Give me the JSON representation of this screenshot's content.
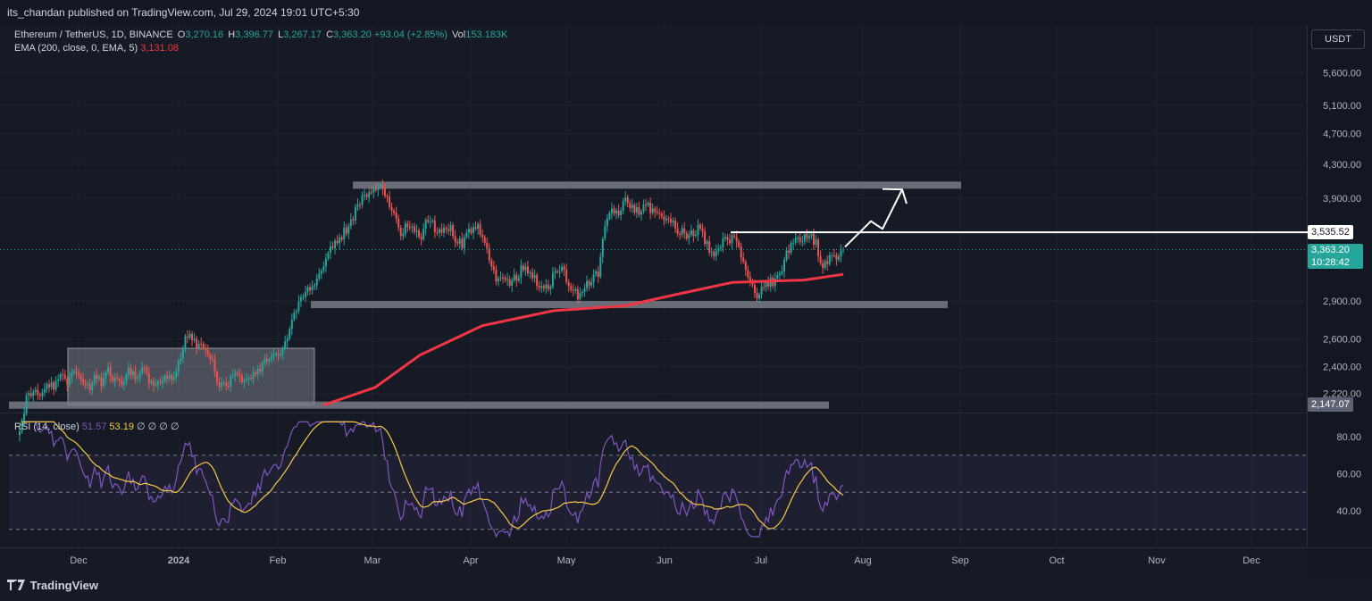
{
  "header": {
    "published_by": "its_chandan published on TradingView.com, Jul 29, 2024 19:01 UTC+5:30"
  },
  "legend": {
    "symbol": "Ethereum / TetherUS, 1D, BINANCE",
    "open_label": "O",
    "open": "3,270.16",
    "high_label": "H",
    "high": "3,396.77",
    "low_label": "L",
    "low": "3,267.17",
    "close_label": "C",
    "close": "3,363.20",
    "change": "+93.04 (+2.85%)",
    "vol_label": "Vol",
    "vol": "153.183K",
    "ema_label": "EMA (200, close, 0, EMA, 5)",
    "ema_value": "3,131.08"
  },
  "rsi_legend": {
    "label": "RSI (14, close)",
    "rsi": "51.57",
    "rsi_ma": "53.19",
    "extras": "∅ ∅ ∅ ∅"
  },
  "currency_button": "USDT",
  "price_tags": {
    "resistance": "3,535.52",
    "last_price": "3,363.20",
    "countdown": "10:28:42",
    "support": "2,147.07"
  },
  "footer": {
    "brand": "TradingView"
  },
  "colors": {
    "up": "#26a69a",
    "down": "#ef5350",
    "ema": "#f23645",
    "rsi": "#7e57c2",
    "rsi_ma": "#f7c948",
    "zone": "#787b86"
  },
  "chart_data": [
    {
      "type": "candlestick",
      "title": "Ethereum / TetherUS, 1D, BINANCE",
      "y_axis_ticks": [
        5600,
        5100,
        4700,
        4300,
        3900,
        3535.52,
        3363.2,
        2900,
        2600,
        2400,
        2220,
        2147.07
      ],
      "y_axis_labels": [
        "5,600.00",
        "5,100.00",
        "4,700.00",
        "4,300.00",
        "3,900.00",
        "2,900.00",
        "2,600.00",
        "2,400.00",
        "2,220.00"
      ],
      "x_axis_labels": [
        "Dec",
        "2024",
        "Feb",
        "Mar",
        "Apr",
        "May",
        "Jun",
        "Jul",
        "Aug",
        "Sep",
        "Oct",
        "Nov",
        "Dec"
      ],
      "close_path": [
        2020,
        2180,
        2260,
        2200,
        2290,
        2250,
        2340,
        2300,
        2380,
        2310,
        2250,
        2320,
        2290,
        2360,
        2300,
        2280,
        2360,
        2320,
        2380,
        2300,
        2260,
        2300,
        2330,
        2370,
        2550,
        2650,
        2530,
        2570,
        2480,
        2300,
        2260,
        2320,
        2360,
        2310,
        2340,
        2380,
        2420,
        2440,
        2480,
        2560,
        2740,
        2860,
        2980,
        3050,
        3120,
        3250,
        3400,
        3480,
        3560,
        3700,
        3850,
        3960,
        3990,
        4050,
        3930,
        3700,
        3500,
        3620,
        3560,
        3500,
        3680,
        3580,
        3500,
        3600,
        3480,
        3420,
        3560,
        3600,
        3500,
        3280,
        3080,
        3100,
        3060,
        3120,
        3200,
        3140,
        3060,
        2990,
        3050,
        3200,
        3150,
        3000,
        2950,
        3030,
        3100,
        3120,
        3600,
        3800,
        3720,
        3860,
        3790,
        3760,
        3820,
        3760,
        3700,
        3650,
        3610,
        3550,
        3520,
        3500,
        3600,
        3400,
        3340,
        3420,
        3460,
        3450,
        3300,
        3100,
        2950,
        2980,
        3050,
        3080,
        3200,
        3380,
        3480,
        3450,
        3500,
        3420,
        3200,
        3260,
        3290,
        3363.2
      ],
      "ema200": {
        "name": "EMA (200, close, 0, EMA, 5)",
        "last": 3131.08
      },
      "annotations": [
        {
          "kind": "zone",
          "price": 4050
        },
        {
          "kind": "zone",
          "price": 2870
        },
        {
          "kind": "zone",
          "price": 2147.07
        },
        {
          "kind": "box",
          "price_top": 2530,
          "price_bottom": 2147.07
        },
        {
          "kind": "hline",
          "price": 3535.52
        },
        {
          "kind": "arrow",
          "direction": "up"
        }
      ]
    },
    {
      "type": "line",
      "title": "RSI (14, close)",
      "y_axis_labels": [
        "80.00",
        "60.00",
        "40.00"
      ],
      "levels": [
        70,
        50,
        30
      ],
      "series": [
        {
          "name": "RSI",
          "last": 51.57
        },
        {
          "name": "RSI MA",
          "last": 53.19
        }
      ]
    }
  ]
}
